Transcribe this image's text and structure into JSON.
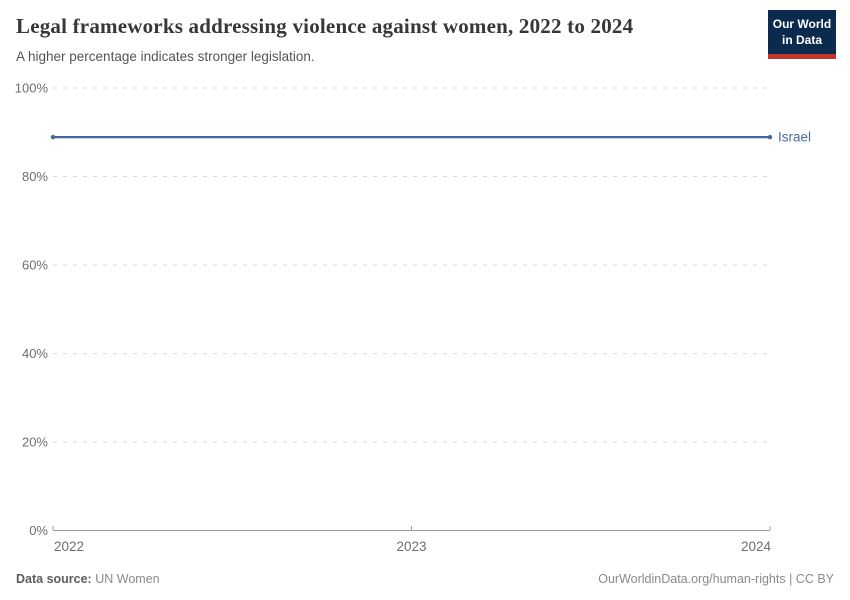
{
  "header": {
    "title": "Legal frameworks addressing violence against women, 2022 to 2024",
    "subtitle": "A higher percentage indicates stronger legislation.",
    "logo": {
      "line1": "Our World",
      "line2": "in Data"
    }
  },
  "chart_data": {
    "type": "line",
    "title": "Legal frameworks addressing violence against women, 2022 to 2024",
    "subtitle": "A higher percentage indicates stronger legislation.",
    "x": [
      2022,
      2023,
      2024
    ],
    "xticks": [
      "2022",
      "2023",
      "2024"
    ],
    "series": [
      {
        "name": "Israel",
        "values": [
          88.9,
          88.9,
          88.9
        ],
        "color": "#44669c",
        "label_color": "#4c6a9c"
      }
    ],
    "ylim": [
      0,
      100
    ],
    "yticks": [
      0,
      20,
      40,
      60,
      80,
      100
    ],
    "ytick_suffix": "%",
    "grid": "dashed-horizontal",
    "legend": "end-of-line-label",
    "colors": {
      "gridline": "#d9d9d9",
      "axis": "#9e9e9e",
      "tick_text": "#6e6e6e"
    }
  },
  "footer": {
    "source_label": "Data source:",
    "source_value": "UN Women",
    "credit": "OurWorldinData.org/human-rights | CC BY"
  }
}
